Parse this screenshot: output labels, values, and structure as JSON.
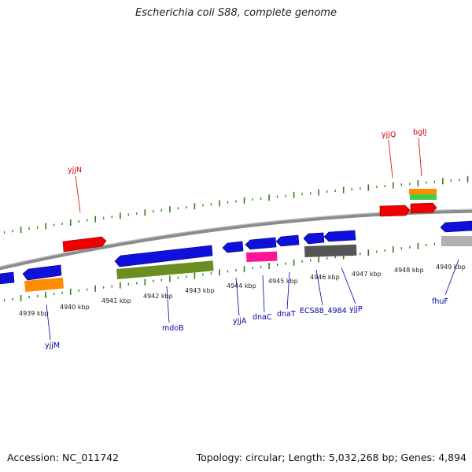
{
  "title": "Escherichia coli S88, complete genome",
  "footer": {
    "accession": "Accession: NC_011742",
    "summary": "Topology: circular; Length: 5,032,268 bp; Genes: 4,894"
  },
  "colors": {
    "backbone": "#8c8c8c",
    "tick": "#2e7d1a",
    "forward_label": "#cc0000",
    "reverse_label": "#0000aa",
    "red": "#ee0000",
    "blue": "#1010dd",
    "orange": "#ff8c00",
    "green": "#6b8e23",
    "pink": "#ff1493",
    "gray": "#555555",
    "lightgray": "#b0b0b0",
    "lightgreen": "#44cc44"
  },
  "kbp_labels": [
    "4939 kbp",
    "4940 kbp",
    "4941 kbp",
    "4942 kbp",
    "4943 kbp",
    "4944 kbp",
    "4945 kbp",
    "4946 kbp",
    "4947 kbp",
    "4948 kbp",
    "4949 kbp"
  ],
  "labels_forward": [
    "yjjN",
    "yjjQ",
    "bglJ"
  ],
  "labels_reverse": [
    "yjjM",
    "mdoB",
    "yjjA",
    "dnaC",
    "dnaT",
    "ECS88_4984",
    "yjjP",
    "fhuF"
  ]
}
